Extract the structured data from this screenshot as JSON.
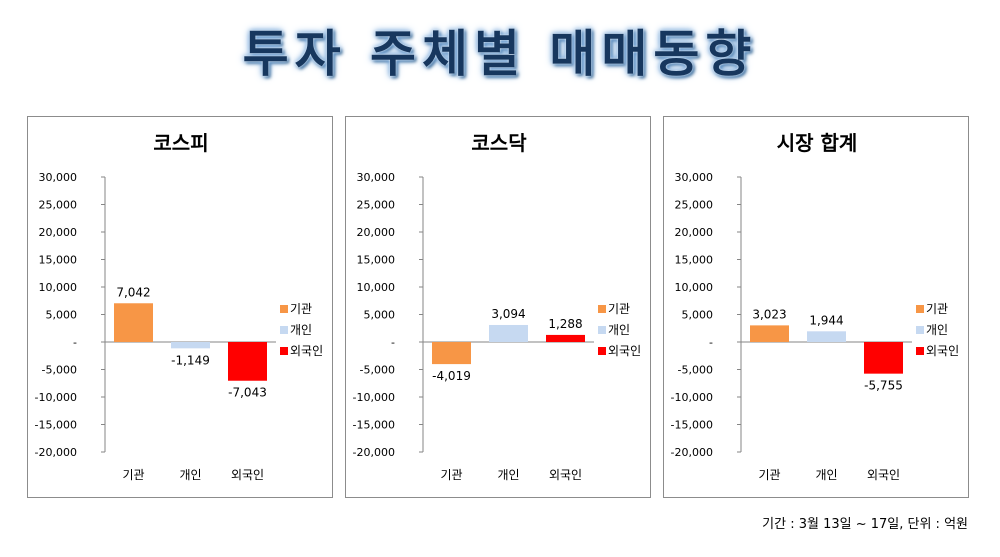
{
  "title": "투자 주체별 매매동향",
  "footnote": "기간 : 3월 13일 ~ 17일, 단위 : 억원",
  "chart_data": [
    {
      "type": "bar",
      "title": "코스피",
      "categories": [
        "기관",
        "개인",
        "외국인"
      ],
      "values": [
        7042,
        -1149,
        -7043
      ],
      "value_labels": [
        "7,042",
        "-1,149",
        "-7,043"
      ],
      "colors": [
        "#f79646",
        "#c6d9f1",
        "#ff0000"
      ],
      "ylim": [
        -20000,
        30000
      ],
      "yticks": [
        "30,000",
        "25,000",
        "20,000",
        "15,000",
        "10,000",
        "5,000",
        "-",
        "-5,000",
        "-10,000",
        "-15,000",
        "-20,000"
      ],
      "legend": [
        "기관",
        "개인",
        "외국인"
      ],
      "legend_position": "right"
    },
    {
      "type": "bar",
      "title": "코스닥",
      "categories": [
        "기관",
        "개인",
        "외국인"
      ],
      "values": [
        -4019,
        3094,
        1288
      ],
      "value_labels": [
        "-4,019",
        "3,094",
        "1,288"
      ],
      "colors": [
        "#f79646",
        "#c6d9f1",
        "#ff0000"
      ],
      "ylim": [
        -20000,
        30000
      ],
      "yticks": [
        "30,000",
        "25,000",
        "20,000",
        "15,000",
        "10,000",
        "5,000",
        "-",
        "-5,000",
        "-10,000",
        "-15,000",
        "-20,000"
      ],
      "legend": [
        "기관",
        "개인",
        "외국인"
      ],
      "legend_position": "right"
    },
    {
      "type": "bar",
      "title": "시장 합계",
      "categories": [
        "기관",
        "개인",
        "외국인"
      ],
      "values": [
        3023,
        1944,
        -5755
      ],
      "value_labels": [
        "3,023",
        "1,944",
        "-5,755"
      ],
      "colors": [
        "#f79646",
        "#c6d9f1",
        "#ff0000"
      ],
      "ylim": [
        -20000,
        30000
      ],
      "yticks": [
        "30,000",
        "25,000",
        "20,000",
        "15,000",
        "10,000",
        "5,000",
        "-",
        "-5,000",
        "-10,000",
        "-15,000",
        "-20,000"
      ],
      "legend": [
        "기관",
        "개인",
        "외국인"
      ],
      "legend_position": "right"
    }
  ]
}
